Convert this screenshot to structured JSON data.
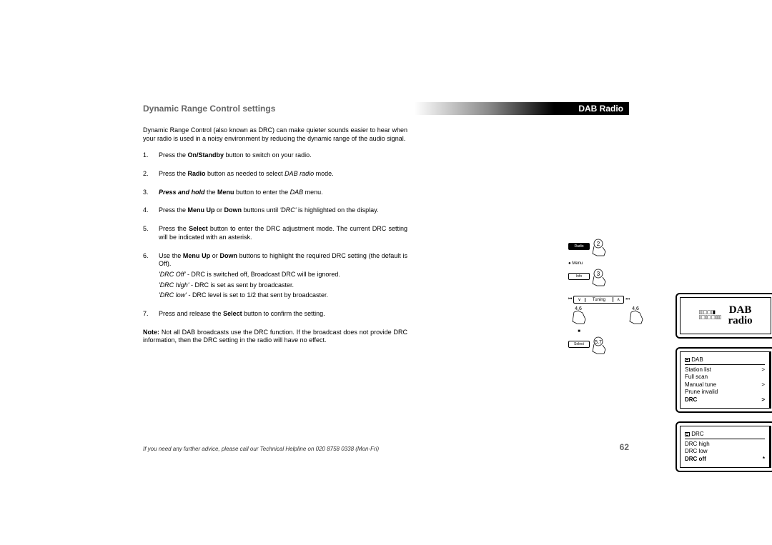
{
  "header": {
    "section": "DAB Radio"
  },
  "title": "Dynamic Range Control settings",
  "intro": "Dynamic Range Control (also known as DRC) can make quieter sounds easier to hear when your radio is used in a noisy environment by reducing the dynamic range of the audio signal.",
  "steps": {
    "s1": {
      "pre": "Press the ",
      "b": "On/Standby",
      "post": " button to switch on your radio."
    },
    "s2": {
      "pre": "Press the ",
      "b": "Radio",
      "mid": " button as needed to select ",
      "i": "DAB radio",
      "post": " mode."
    },
    "s3": {
      "bi": "Press and hold",
      "mid1": " the ",
      "b": "Menu",
      "mid2": " button to enter the ",
      "i": "DAB",
      "post": " menu."
    },
    "s4": {
      "pre": "Press the ",
      "b": "Menu Up",
      "mid1": " or ",
      "b2": "Down",
      "mid2": " buttons until ",
      "i": "'DRC'",
      "post": " is highlighted on the display."
    },
    "s5": {
      "pre": "Press the ",
      "b": "Select",
      "post": " button to enter the DRC adjustment mode. The current DRC setting will be indicated with an asterisk."
    },
    "s6": {
      "pre": "Use the ",
      "b": "Menu Up",
      "mid1": " or ",
      "b2": "Down",
      "post": " buttons to highlight the required DRC setting (the default is Off).",
      "opt1": {
        "i": "'DRC Off'",
        "t": " - DRC is switched off, Broadcast DRC will be ignored."
      },
      "opt2": {
        "i": "'DRC high'",
        "t": " - DRC is set as sent by broadcaster."
      },
      "opt3": {
        "i": "'DRC low'",
        "t": " - DRC level is set to 1/2 that sent by broadcaster."
      }
    },
    "s7": {
      "pre": "Press and release the ",
      "b": "Select",
      "post": " button to confirm the setting."
    }
  },
  "note": {
    "b": "Note:",
    "t": " Not all DAB broadcasts use the DRC function. If the broadcast does not provide DRC information, then the DRC setting in the radio will have no effect."
  },
  "footer": "If you need any further advice, please call our Technical Helpline on 020 8758 0338 (Mon-Fri)",
  "page_number": "62",
  "diagram": {
    "buttons": {
      "radio": "Radio",
      "menu": "Menu",
      "info": "Info",
      "select": "Select",
      "tuning": "Tuning",
      "n2": "2",
      "n3": "3",
      "n46a": "4,6",
      "n46b": "4,6",
      "n57": "5,7",
      "down": "∨",
      "up": "∧",
      "prev": "⏮",
      "next": "⏭",
      "stop": "■"
    },
    "lcd1": {
      "line1": "DAB",
      "line2": "radio",
      "iconA": "▯▯▢▢▯▮",
      "iconB": "▯▢▯▢▢▯▯▯"
    },
    "lcd2": {
      "head": "DAB",
      "rows": [
        {
          "label": "Station list",
          "arrow": ">"
        },
        {
          "label": "Full scan",
          "arrow": ""
        },
        {
          "label": "Manual tune",
          "arrow": ">"
        },
        {
          "label": "Prune invalid",
          "arrow": ""
        },
        {
          "label": "DRC",
          "arrow": ">",
          "sel": true
        }
      ]
    },
    "lcd3": {
      "head": "DRC",
      "rows": [
        {
          "label": "DRC high",
          "arrow": ""
        },
        {
          "label": "DRC low",
          "arrow": ""
        },
        {
          "label": "DRC off",
          "arrow": "*",
          "sel": true
        }
      ]
    }
  }
}
